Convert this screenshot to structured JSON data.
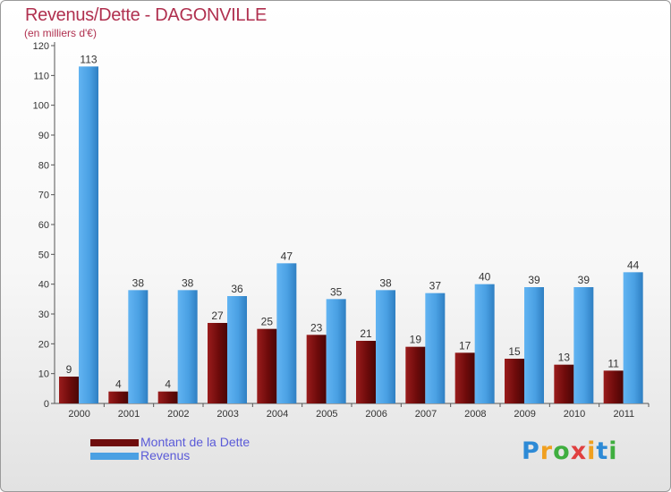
{
  "chart_data": {
    "type": "bar",
    "title": "Revenus/Dette - DAGONVILLE",
    "subtitle": "(en milliers d'€)",
    "categories": [
      "2000",
      "2001",
      "2002",
      "2003",
      "2004",
      "2005",
      "2006",
      "2007",
      "2008",
      "2009",
      "2010",
      "2011"
    ],
    "series": [
      {
        "name": "Montant de la Dette",
        "color": "#6e0b0b",
        "values": [
          9,
          4,
          4,
          27,
          25,
          23,
          21,
          19,
          17,
          15,
          13,
          11
        ]
      },
      {
        "name": "Revenus",
        "color": "#4aa0e3",
        "values": [
          113,
          38,
          38,
          36,
          47,
          35,
          38,
          37,
          40,
          39,
          39,
          44
        ]
      }
    ],
    "ylim": [
      0,
      120
    ],
    "yticks": [
      0,
      10,
      20,
      30,
      40,
      50,
      60,
      70,
      80,
      90,
      100,
      110,
      120
    ],
    "grid": false,
    "legend": "bottom-left"
  },
  "brand": {
    "letters": [
      "P",
      "r",
      "o",
      "x",
      "i",
      "t",
      "i"
    ],
    "colors": [
      "#2d8ad6",
      "#f0a020",
      "#3fae3f",
      "#e04040",
      "#f0a020",
      "#2d8ad6",
      "#3fae3f"
    ]
  }
}
